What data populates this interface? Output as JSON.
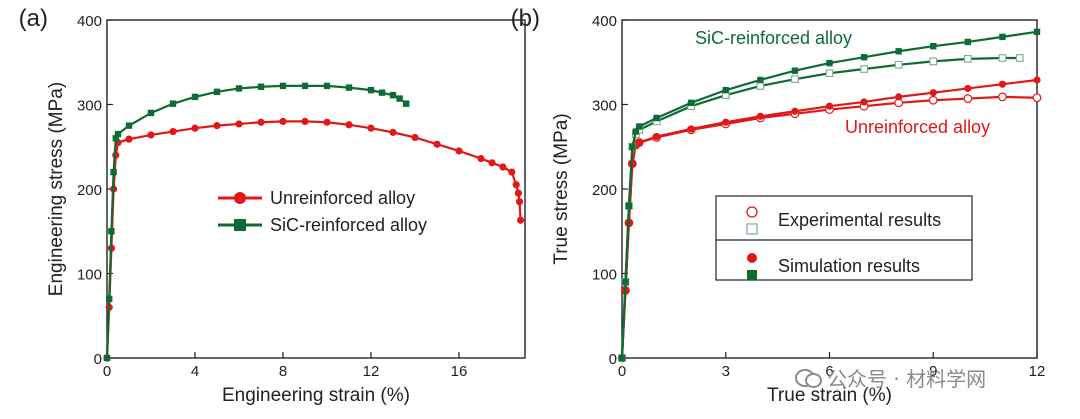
{
  "chart_data": [
    {
      "panel_label": "(a)",
      "type": "line",
      "xlabel": "Engineering strain (%)",
      "ylabel": "Engineering stress (MPa)",
      "xlim": [
        0,
        19
      ],
      "ylim": [
        0,
        400
      ],
      "xticks": [
        0,
        4,
        8,
        12,
        16
      ],
      "yticks": [
        0,
        100,
        200,
        300,
        400
      ],
      "legend_position": "center-right",
      "series": [
        {
          "name": "Unreinforced alloy",
          "color": "#e01818",
          "marker": "circle",
          "x": [
            0,
            0.1,
            0.2,
            0.3,
            0.4,
            0.5,
            1,
            2,
            3,
            4,
            5,
            6,
            7,
            8,
            9,
            10,
            11,
            12,
            13,
            14,
            15,
            16,
            17,
            17.5,
            18,
            18.4,
            18.6,
            18.7,
            18.75,
            18.8
          ],
          "y": [
            0,
            60,
            130,
            200,
            240,
            255,
            259,
            264,
            268,
            272,
            275,
            277,
            279,
            280,
            280,
            279,
            276,
            272,
            267,
            261,
            253,
            245,
            236,
            231,
            226,
            220,
            205,
            195,
            185,
            163
          ]
        },
        {
          "name": "SiC-reinforced alloy",
          "color": "#0f6b35",
          "marker": "square",
          "x": [
            0,
            0.1,
            0.2,
            0.3,
            0.4,
            0.5,
            1,
            2,
            3,
            4,
            5,
            6,
            7,
            8,
            9,
            10,
            11,
            12,
            12.5,
            13,
            13.3,
            13.6
          ],
          "y": [
            0,
            70,
            150,
            220,
            260,
            265,
            275,
            290,
            301,
            309,
            315,
            319,
            321,
            322,
            322,
            322,
            320,
            317,
            314,
            311,
            307,
            301
          ]
        }
      ]
    },
    {
      "panel_label": "(b)",
      "type": "line",
      "xlabel": "True strain (%)",
      "ylabel": "True stress (MPa)",
      "xlim": [
        0,
        12
      ],
      "ylim": [
        0,
        400
      ],
      "xticks": [
        0,
        3,
        6,
        9,
        12
      ],
      "yticks": [
        0,
        100,
        200,
        300,
        400
      ],
      "curve_labels": [
        {
          "text": "SiC-reinforced alloy",
          "color": "#0f6b35"
        },
        {
          "text": "Unreinforced alloy",
          "color": "#e01818"
        }
      ],
      "legend_position": "center-right",
      "legend": [
        {
          "label": "Experimental results",
          "markers": [
            "open-circle",
            "open-square"
          ]
        },
        {
          "label": "Simulation results",
          "markers": [
            "filled-circle",
            "filled-square"
          ]
        }
      ],
      "series": [
        {
          "name": "Unreinforced alloy - experimental",
          "color": "#e01818",
          "marker": "open-circle",
          "x": [
            0,
            0.1,
            0.2,
            0.3,
            0.4,
            0.5,
            1,
            2,
            3,
            4,
            5,
            6,
            7,
            8,
            9,
            10,
            11,
            12
          ],
          "y": [
            0,
            80,
            160,
            230,
            252,
            255,
            261,
            270,
            277,
            284,
            289,
            294,
            298,
            302,
            305,
            307,
            309,
            308
          ]
        },
        {
          "name": "Unreinforced alloy - simulation",
          "color": "#e01818",
          "marker": "filled-circle",
          "x": [
            0,
            0.1,
            0.2,
            0.3,
            0.4,
            0.5,
            1,
            2,
            3,
            4,
            5,
            6,
            7,
            8,
            9,
            10,
            11,
            12
          ],
          "y": [
            0,
            80,
            160,
            230,
            252,
            255,
            262,
            271,
            279,
            286,
            292,
            298,
            303,
            309,
            314,
            319,
            324,
            329
          ]
        },
        {
          "name": "SiC-reinforced alloy - experimental",
          "color": "#0f6b35",
          "marker": "open-square",
          "x": [
            0,
            0.1,
            0.2,
            0.3,
            0.4,
            0.5,
            1,
            2,
            3,
            4,
            5,
            6,
            7,
            8,
            9,
            10,
            11,
            11.5
          ],
          "y": [
            0,
            90,
            180,
            250,
            265,
            270,
            280,
            298,
            311,
            322,
            330,
            337,
            342,
            347,
            351,
            354,
            355,
            355
          ]
        },
        {
          "name": "SiC-reinforced alloy - simulation",
          "color": "#0f6b35",
          "marker": "filled-square",
          "x": [
            0,
            0.1,
            0.2,
            0.3,
            0.4,
            0.5,
            1,
            2,
            3,
            4,
            5,
            6,
            7,
            8,
            9,
            10,
            11,
            12
          ],
          "y": [
            0,
            90,
            180,
            250,
            268,
            274,
            284,
            302,
            317,
            329,
            340,
            349,
            356,
            363,
            369,
            374,
            380,
            386
          ]
        }
      ]
    }
  ],
  "watermark": {
    "text": "公众号 · 材料学网",
    "icon": "wechat-icon"
  }
}
